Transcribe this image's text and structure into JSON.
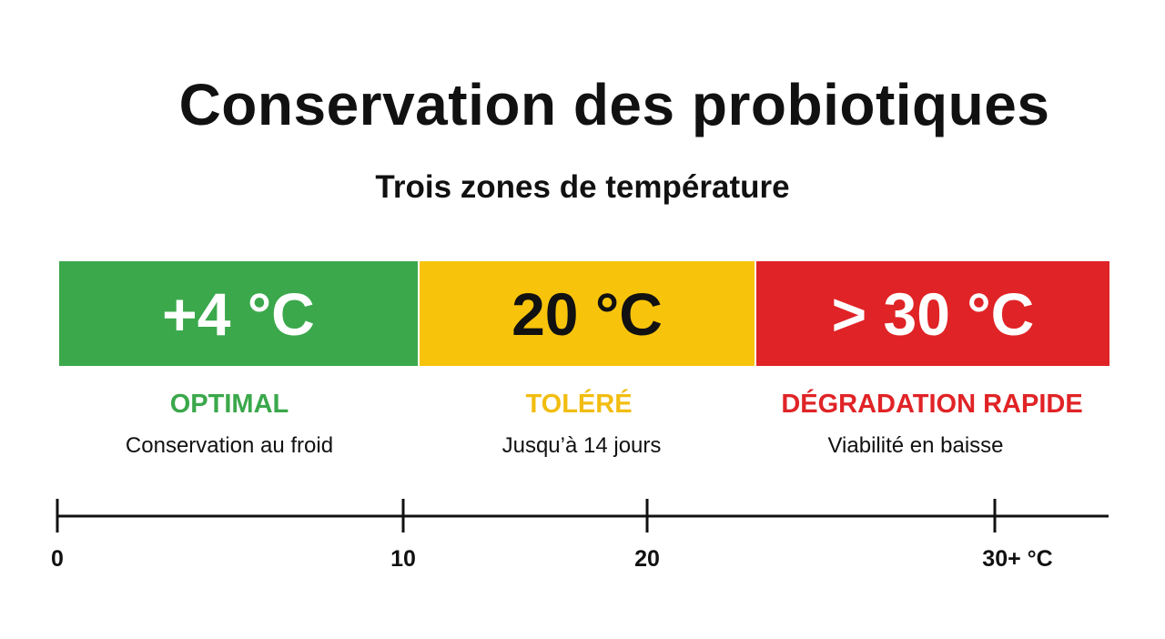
{
  "header": {
    "title": "Conservation des probiotiques",
    "subtitle": "Trois zones de température"
  },
  "zones": [
    {
      "temperature": "+4 °C",
      "label": "OPTIMAL",
      "description": "Conservation au froid"
    },
    {
      "temperature": "20 °C",
      "label": "TOLÉRÉ",
      "description": "Jusqu’à 14 jours"
    },
    {
      "temperature": "> 30 °C",
      "label": "DÉGRADATION RAPIDE",
      "description": "Viabilité en baisse"
    }
  ],
  "scale": {
    "ticks": [
      "0",
      "10",
      "20",
      "30+ °C"
    ]
  }
}
